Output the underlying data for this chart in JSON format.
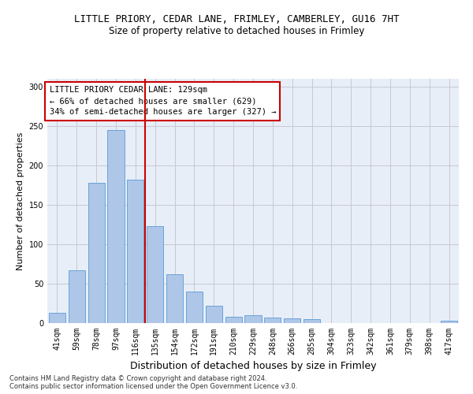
{
  "title_line1": "LITTLE PRIORY, CEDAR LANE, FRIMLEY, CAMBERLEY, GU16 7HT",
  "title_line2": "Size of property relative to detached houses in Frimley",
  "xlabel": "Distribution of detached houses by size in Frimley",
  "ylabel": "Number of detached properties",
  "categories": [
    "41sqm",
    "59sqm",
    "78sqm",
    "97sqm",
    "116sqm",
    "135sqm",
    "154sqm",
    "172sqm",
    "191sqm",
    "210sqm",
    "229sqm",
    "248sqm",
    "266sqm",
    "285sqm",
    "304sqm",
    "323sqm",
    "342sqm",
    "361sqm",
    "379sqm",
    "398sqm",
    "417sqm"
  ],
  "values": [
    13,
    67,
    178,
    245,
    182,
    123,
    62,
    40,
    22,
    8,
    10,
    7,
    6,
    5,
    0,
    0,
    0,
    0,
    0,
    0,
    3
  ],
  "bar_color": "#aec6e8",
  "bar_edge_color": "#5b9bd5",
  "vline_x_index": 4,
  "vline_color": "#cc0000",
  "annotation_text": "LITTLE PRIORY CEDAR LANE: 129sqm\n← 66% of detached houses are smaller (629)\n34% of semi-detached houses are larger (327) →",
  "annotation_box_color": "#ffffff",
  "annotation_box_edge": "#cc0000",
  "ylim": [
    0,
    310
  ],
  "yticks": [
    0,
    50,
    100,
    150,
    200,
    250,
    300
  ],
  "grid_color": "#c8c8d0",
  "bg_color": "#e8eef8",
  "footer_line1": "Contains HM Land Registry data © Crown copyright and database right 2024.",
  "footer_line2": "Contains public sector information licensed under the Open Government Licence v3.0.",
  "title_fontsize": 9,
  "subtitle_fontsize": 8.5,
  "ylabel_fontsize": 8,
  "xlabel_fontsize": 9,
  "tick_fontsize": 7,
  "annotation_fontsize": 7.5,
  "footer_fontsize": 6
}
